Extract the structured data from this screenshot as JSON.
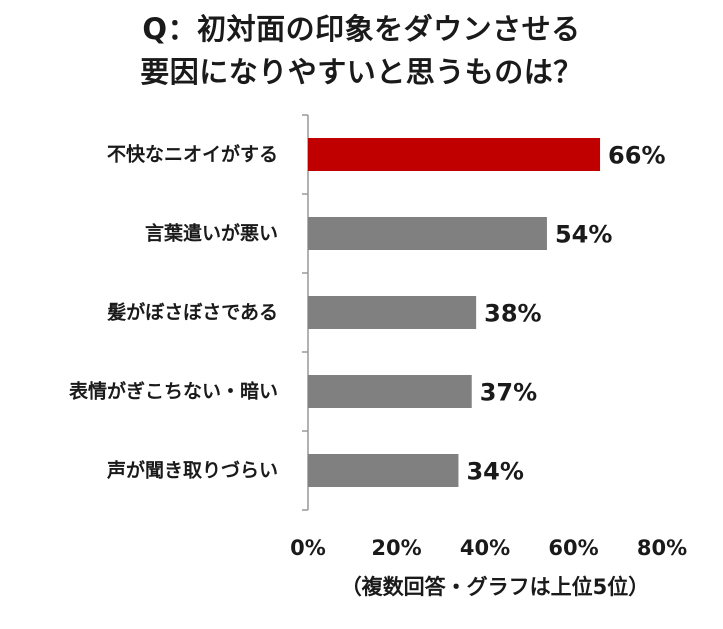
{
  "title": {
    "line1": "Q：初対面の印象をダウンさせる",
    "line2": "要因になりやすいと思うものは？"
  },
  "footnote": "（複数回答・グラフは上位5位）",
  "colors": {
    "highlight_bar": "#c00000",
    "bar": "#808080",
    "axis": "#999999",
    "text": "#1a1a1a"
  },
  "chart_data": {
    "type": "bar",
    "orientation": "horizontal",
    "categories": [
      "不快なニオイがする",
      "言葉遣いが悪い",
      "髪がぼさぼさである",
      "表情がぎこちない・暗い",
      "声が聞き取りづらい"
    ],
    "values": [
      66,
      54,
      38,
      37,
      34
    ],
    "value_labels": [
      "66%",
      "54%",
      "38%",
      "37%",
      "34%"
    ],
    "highlighted_index": 0,
    "xlim": [
      0,
      80
    ],
    "xticks": [
      0,
      20,
      40,
      60,
      80
    ],
    "xtick_labels": [
      "0%",
      "20%",
      "40%",
      "60%",
      "80%"
    ],
    "grid": false,
    "legend": "none"
  }
}
